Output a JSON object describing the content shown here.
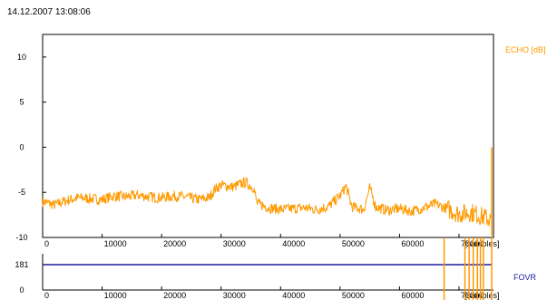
{
  "timestamp": "14.12.2007 13:08:06",
  "colors": {
    "echo": "#ff9900",
    "fovr": "#1a1aa0",
    "axis": "#000000"
  },
  "chart_data": [
    {
      "type": "line",
      "series_label": "ECHO [dB]",
      "x_unit_label": "[samples]",
      "xlim": [
        0,
        75800
      ],
      "ylim": [
        -10,
        12.5
      ],
      "x_ticks": [
        0,
        10000,
        20000,
        30000,
        40000,
        50000,
        60000,
        70000
      ],
      "y_ticks": [
        10,
        5,
        0,
        -5,
        -10
      ],
      "grid": false,
      "x": [
        0,
        2000,
        4000,
        6000,
        8000,
        10000,
        12000,
        14000,
        16000,
        18000,
        20000,
        22000,
        24000,
        26000,
        28000,
        29000,
        30000,
        32000,
        34000,
        35500,
        36000,
        38000,
        40000,
        42000,
        44000,
        46000,
        48000,
        50000,
        51000,
        52000,
        54000,
        55000,
        56000,
        58000,
        60000,
        62000,
        64000,
        66000,
        68000,
        70000,
        72000,
        74000,
        75500
      ],
      "y": [
        -6.0,
        -6.4,
        -5.9,
        -5.6,
        -5.7,
        -5.8,
        -5.4,
        -5.5,
        -5.3,
        -5.5,
        -5.6,
        -5.4,
        -5.5,
        -5.8,
        -5.6,
        -4.6,
        -4.2,
        -4.4,
        -3.9,
        -4.5,
        -6.2,
        -6.7,
        -6.9,
        -6.8,
        -6.7,
        -6.9,
        -6.6,
        -5.4,
        -4.3,
        -6.6,
        -6.9,
        -4.5,
        -6.6,
        -7.0,
        -6.8,
        -7.1,
        -6.7,
        -6.3,
        -6.8,
        -7.4,
        -7.2,
        -7.7,
        -8.1
      ]
    },
    {
      "type": "line",
      "series_label": "FOVR",
      "x_unit_label": "[samples]",
      "xlim": [
        0,
        75800
      ],
      "y_ticks": [
        181,
        0
      ],
      "ylim": [
        0,
        181
      ],
      "x_ticks": [
        0,
        10000,
        20000,
        30000,
        40000,
        50000,
        60000,
        70000
      ],
      "x": [
        0,
        75500
      ],
      "y": [
        181,
        181
      ],
      "dropouts_x": [
        67500,
        71000,
        71700,
        72400,
        73100,
        73600,
        74100,
        75500
      ]
    }
  ]
}
